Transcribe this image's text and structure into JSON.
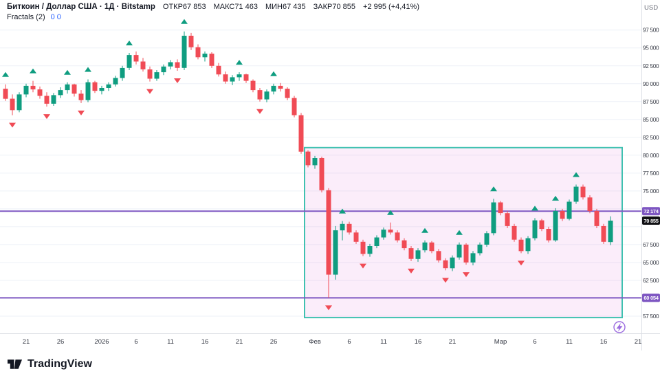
{
  "header": {
    "title": "Биткоин / Доллар США · 1Д · Bitstamp",
    "ohlc": {
      "o": {
        "label": "ОТКР",
        "value": "67 853"
      },
      "h": {
        "label": "МАКС",
        "value": "71 463"
      },
      "l": {
        "label": "МИН",
        "value": "67 435"
      },
      "c": {
        "label": "ЗАКР",
        "value": "70 855"
      },
      "change": "+2 995 (+4,41%)"
    },
    "indicator": {
      "name": "Fractals (2)",
      "values_text": "0 0"
    }
  },
  "axis": {
    "currency": "USD"
  },
  "footer": {
    "brand": "TradingView"
  },
  "chart_data": {
    "type": "candlestick",
    "symbol": "Биткоин / Доллар США",
    "interval": "1Д",
    "exchange": "Bitstamp",
    "ylim": [
      55100,
      101700
    ],
    "colors": {
      "up": "#0f9d80",
      "down": "#f04b55",
      "flash": "#9b6bdf",
      "grid": "#eef1f7",
      "axis_text": "#363a45"
    },
    "price_ticks": [
      {
        "price": 97500,
        "label": "97 500"
      },
      {
        "price": 95000,
        "label": "95 000"
      },
      {
        "price": 92500,
        "label": "92 500"
      },
      {
        "price": 90000,
        "label": "90 000"
      },
      {
        "price": 87500,
        "label": "87 500"
      },
      {
        "price": 85000,
        "label": "85 000"
      },
      {
        "price": 82500,
        "label": "82 500"
      },
      {
        "price": 80000,
        "label": "80 000"
      },
      {
        "price": 77500,
        "label": "77 500"
      },
      {
        "price": 75000,
        "label": "75 000"
      },
      {
        "price": 72500,
        "label": null
      },
      {
        "price": 70000,
        "label": null
      },
      {
        "price": 67500,
        "label": "67 500"
      },
      {
        "price": 65000,
        "label": "65 000"
      },
      {
        "price": 62500,
        "label": "62 500"
      },
      {
        "price": 60000,
        "label": null
      },
      {
        "price": 57500,
        "label": "57 500"
      }
    ],
    "levels": [
      {
        "price": 72174,
        "label": "72 174",
        "color": "#7e57c2"
      },
      {
        "price": 60054,
        "label": "60 054",
        "color": "#7e57c2"
      }
    ],
    "last_price": {
      "value": 70855,
      "label": "70 855",
      "bg": "#101014"
    },
    "selection_box": {
      "from_index": 43.5,
      "to_index": 89.7,
      "top_price": 81060,
      "bottom_price": 57300,
      "fill": "rgba(216,92,211,0.11)",
      "border": "#3fc1b0"
    },
    "time_labels": [
      {
        "i": 3,
        "t": "21"
      },
      {
        "i": 8,
        "t": "26"
      },
      {
        "i": 14,
        "t": "2026"
      },
      {
        "i": 19,
        "t": "6"
      },
      {
        "i": 24,
        "t": "11"
      },
      {
        "i": 29,
        "t": "16"
      },
      {
        "i": 34,
        "t": "21"
      },
      {
        "i": 39,
        "t": "26"
      },
      {
        "i": 45,
        "t": "Фев"
      },
      {
        "i": 50,
        "t": "6"
      },
      {
        "i": 55,
        "t": "11"
      },
      {
        "i": 60,
        "t": "16"
      },
      {
        "i": 65,
        "t": "21"
      },
      {
        "i": 72,
        "t": "Мар"
      },
      {
        "i": 77,
        "t": "6"
      },
      {
        "i": 82,
        "t": "11"
      },
      {
        "i": 87,
        "t": "16"
      },
      {
        "i": 92,
        "t": "21"
      }
    ],
    "candles": [
      [
        89300,
        89900,
        87600,
        87900,
        "up"
      ],
      [
        87900,
        88500,
        85600,
        86300,
        "down"
      ],
      [
        86300,
        88800,
        86000,
        88500,
        0
      ],
      [
        88500,
        90000,
        88100,
        89700,
        0
      ],
      [
        89700,
        90400,
        88800,
        89200,
        "up"
      ],
      [
        89200,
        89600,
        87900,
        88300,
        0
      ],
      [
        88300,
        88800,
        86800,
        87200,
        "down"
      ],
      [
        87200,
        88700,
        86900,
        88400,
        0
      ],
      [
        88400,
        89500,
        88000,
        89100,
        0
      ],
      [
        89100,
        90200,
        88600,
        89900,
        "up"
      ],
      [
        89900,
        90000,
        88200,
        88600,
        0
      ],
      [
        88600,
        89100,
        87300,
        87700,
        "down"
      ],
      [
        87700,
        90600,
        87400,
        90200,
        "up"
      ],
      [
        90200,
        90400,
        88700,
        89000,
        0
      ],
      [
        89000,
        89700,
        88500,
        89400,
        0
      ],
      [
        89400,
        90200,
        89000,
        89900,
        0
      ],
      [
        89900,
        91100,
        89600,
        90800,
        0
      ],
      [
        90800,
        92500,
        90400,
        92200,
        0
      ],
      [
        92200,
        94300,
        91900,
        94000,
        "up"
      ],
      [
        94000,
        94500,
        92700,
        93100,
        0
      ],
      [
        93100,
        93600,
        91700,
        92000,
        0
      ],
      [
        92000,
        92400,
        90300,
        90700,
        "down"
      ],
      [
        90700,
        91900,
        90400,
        91600,
        0
      ],
      [
        91600,
        92700,
        91200,
        92400,
        0
      ],
      [
        92400,
        93300,
        92000,
        93000,
        0
      ],
      [
        93000,
        93400,
        91800,
        92200,
        "down"
      ],
      [
        92200,
        97300,
        91900,
        96700,
        "up"
      ],
      [
        96700,
        97100,
        94700,
        95100,
        0
      ],
      [
        95100,
        95500,
        93400,
        93700,
        0
      ],
      [
        93700,
        94500,
        93100,
        94200,
        0
      ],
      [
        94200,
        94400,
        92200,
        92500,
        0
      ],
      [
        92500,
        92900,
        91000,
        91300,
        0
      ],
      [
        91300,
        91700,
        90000,
        90300,
        0
      ],
      [
        90300,
        91200,
        89800,
        90900,
        0
      ],
      [
        90900,
        91600,
        90400,
        91300,
        "up"
      ],
      [
        91300,
        91400,
        90100,
        90400,
        0
      ],
      [
        90400,
        90600,
        88800,
        89100,
        0
      ],
      [
        89100,
        89400,
        87500,
        87800,
        "down"
      ],
      [
        87800,
        89200,
        87400,
        88900,
        0
      ],
      [
        88900,
        90000,
        88500,
        89700,
        "up"
      ],
      [
        89700,
        90100,
        88900,
        89300,
        0
      ],
      [
        89300,
        89500,
        87700,
        88000,
        0
      ],
      [
        88000,
        88300,
        85300,
        85600,
        0
      ],
      [
        85600,
        85900,
        80200,
        80500,
        0
      ],
      [
        80500,
        80700,
        78300,
        78600,
        0
      ],
      [
        78600,
        79900,
        78100,
        79600,
        0
      ],
      [
        79600,
        79800,
        74800,
        75100,
        0
      ],
      [
        75100,
        75400,
        60054,
        63300,
        "down"
      ],
      [
        63300,
        70100,
        62600,
        69500,
        0
      ],
      [
        69500,
        70800,
        68100,
        70400,
        "up"
      ],
      [
        70400,
        70700,
        68900,
        69200,
        0
      ],
      [
        69200,
        69500,
        67600,
        67900,
        0
      ],
      [
        67900,
        68200,
        65900,
        66200,
        "down"
      ],
      [
        66200,
        67600,
        65800,
        67300,
        0
      ],
      [
        67300,
        68800,
        67000,
        68500,
        0
      ],
      [
        68500,
        69900,
        68200,
        69600,
        0
      ],
      [
        69600,
        70600,
        68900,
        69200,
        "up"
      ],
      [
        69200,
        69500,
        67800,
        68100,
        0
      ],
      [
        68100,
        68400,
        66700,
        67000,
        0
      ],
      [
        67000,
        67300,
        65200,
        65500,
        "down"
      ],
      [
        65500,
        67000,
        65100,
        66700,
        0
      ],
      [
        66700,
        68100,
        66400,
        67800,
        "up"
      ],
      [
        67800,
        68000,
        66300,
        66600,
        0
      ],
      [
        66600,
        66900,
        65000,
        65300,
        0
      ],
      [
        65300,
        65600,
        63900,
        64200,
        "down"
      ],
      [
        64200,
        66000,
        63800,
        65700,
        0
      ],
      [
        65700,
        67800,
        65400,
        67500,
        "up"
      ],
      [
        67500,
        67700,
        64700,
        65000,
        "down"
      ],
      [
        65000,
        66600,
        64600,
        66300,
        0
      ],
      [
        66300,
        67800,
        66000,
        67500,
        0
      ],
      [
        67500,
        69400,
        67200,
        69100,
        0
      ],
      [
        69100,
        73900,
        68800,
        73400,
        "up"
      ],
      [
        73400,
        73600,
        71600,
        71900,
        0
      ],
      [
        71900,
        72200,
        69800,
        70100,
        0
      ],
      [
        70100,
        70400,
        67900,
        68200,
        0
      ],
      [
        68200,
        68500,
        66300,
        66600,
        "down"
      ],
      [
        66600,
        68700,
        66200,
        68400,
        0
      ],
      [
        68400,
        71200,
        68100,
        70900,
        "up"
      ],
      [
        70900,
        71100,
        69400,
        69700,
        0
      ],
      [
        69700,
        70000,
        67800,
        68100,
        0
      ],
      [
        68100,
        72600,
        67900,
        72200,
        "up"
      ],
      [
        72200,
        72500,
        70800,
        71100,
        0
      ],
      [
        71100,
        73800,
        70900,
        73500,
        0
      ],
      [
        73500,
        75900,
        73200,
        75600,
        "up"
      ],
      [
        75600,
        75900,
        73800,
        74100,
        0
      ],
      [
        74100,
        74400,
        71900,
        72200,
        0
      ],
      [
        72200,
        72500,
        69800,
        70100,
        0
      ],
      [
        70100,
        70400,
        67600,
        67900,
        0
      ],
      [
        67853,
        71463,
        67435,
        70855,
        0
      ]
    ]
  }
}
